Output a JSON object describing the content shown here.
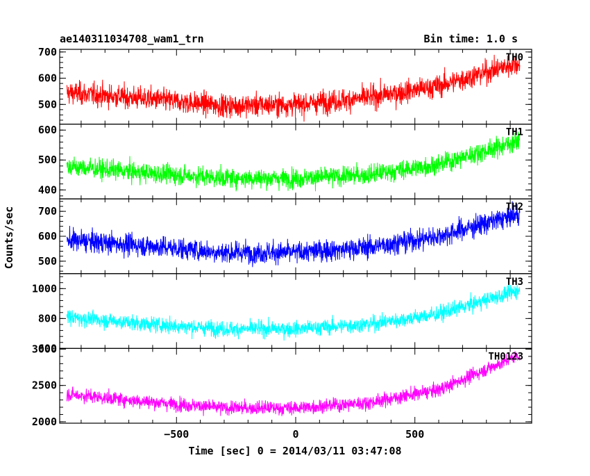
{
  "header": {
    "title": "ae140311034708_wam1_trn",
    "bin_time": "Bin time: 1.0 s"
  },
  "axes": {
    "xlabel": "Time [sec] 0 = 2014/03/11 03:47:08",
    "ylabel": "Counts/sec"
  },
  "chart_data": {
    "type": "line",
    "x_range": [
      -990,
      990
    ],
    "x_data_extent": [
      -960,
      940
    ],
    "x_step": 1,
    "x_ticks": [
      -500,
      0,
      500
    ],
    "x_tick_labels": [
      "−500",
      "0",
      "500"
    ],
    "panels": [
      {
        "name": "TH0",
        "color": "#ff0000",
        "ylim": [
          425,
          710
        ],
        "y_ticks": [
          500,
          600,
          700
        ],
        "y_tick_labels": [
          "500",
          "600",
          "700"
        ],
        "trend": {
          "x": [
            -960,
            -600,
            -300,
            0,
            300,
            600,
            940
          ],
          "y": [
            545,
            520,
            495,
            500,
            525,
            570,
            660
          ]
        },
        "noise": 32
      },
      {
        "name": "TH1",
        "color": "#00ff00",
        "ylim": [
          370,
          620
        ],
        "y_ticks": [
          400,
          500,
          600
        ],
        "y_tick_labels": [
          "400",
          "500",
          "600"
        ],
        "trend": {
          "x": [
            -960,
            -600,
            -300,
            0,
            300,
            600,
            940
          ],
          "y": [
            478,
            455,
            440,
            438,
            450,
            485,
            565
          ]
        },
        "noise": 24
      },
      {
        "name": "TH2",
        "color": "#0000ff",
        "ylim": [
          450,
          750
        ],
        "y_ticks": [
          500,
          600,
          700
        ],
        "y_tick_labels": [
          "500",
          "600",
          "700"
        ],
        "trend": {
          "x": [
            -960,
            -600,
            -300,
            0,
            300,
            600,
            940
          ],
          "y": [
            585,
            560,
            535,
            535,
            555,
            600,
            690
          ]
        },
        "noise": 32
      },
      {
        "name": "TH3",
        "color": "#00ffff",
        "ylim": [
          600,
          1100
        ],
        "y_ticks": [
          600,
          800,
          1000
        ],
        "y_tick_labels": [
          "600",
          "800",
          "1000"
        ],
        "trend": {
          "x": [
            -960,
            -600,
            -300,
            0,
            300,
            600,
            940
          ],
          "y": [
            810,
            760,
            730,
            730,
            760,
            830,
            990
          ]
        },
        "noise": 38
      },
      {
        "name": "TH0123",
        "color": "#ff00ff",
        "ylim": [
          1980,
          3010
        ],
        "y_ticks": [
          2000,
          2500,
          3000
        ],
        "y_tick_labels": [
          "2000",
          "2500",
          "3000"
        ],
        "trend": {
          "x": [
            -960,
            -600,
            -300,
            0,
            300,
            600,
            940
          ],
          "y": [
            2380,
            2270,
            2190,
            2190,
            2260,
            2440,
            2920
          ]
        },
        "noise": 70
      }
    ]
  }
}
